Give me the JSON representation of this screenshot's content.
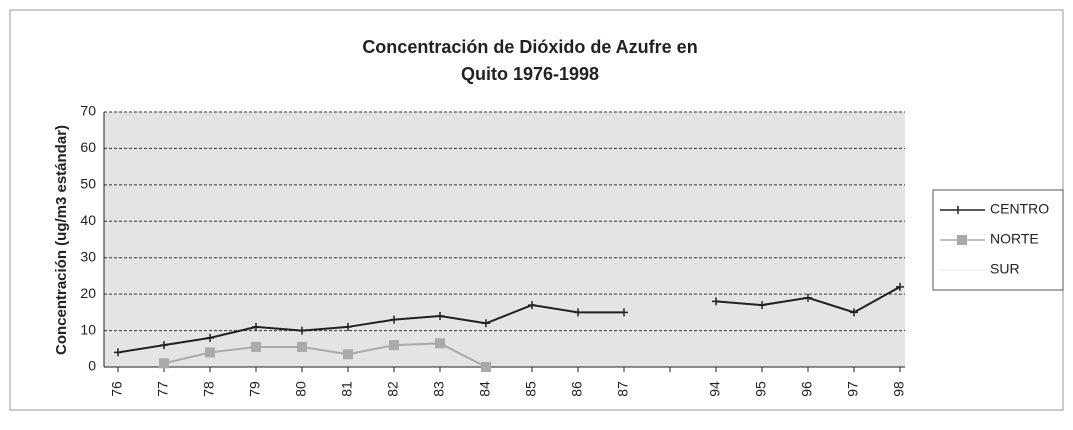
{
  "chart_data": {
    "type": "line",
    "title": [
      "Concentración de Dióxido de Azufre en",
      "Quito 1976-1998"
    ],
    "y_label": "Concentración (ug/m3 estándar)",
    "categories": [
      "76",
      "77",
      "78",
      "79",
      "80",
      "81",
      "82",
      "83",
      "84",
      "85",
      "86",
      "87",
      null,
      "94",
      "95",
      "96",
      "97",
      "98"
    ],
    "series": [
      {
        "name": "CENTRO",
        "color": "#222222",
        "marker": "plus",
        "values": [
          4,
          6,
          8,
          11,
          10,
          11,
          13,
          14,
          12,
          17,
          15,
          15,
          null,
          18,
          17,
          19,
          15,
          22
        ]
      },
      {
        "name": "NORTE",
        "color": "#aaaaaa",
        "marker": "square",
        "values": [
          null,
          1,
          4,
          5.5,
          5.5,
          3.5,
          6,
          6.5,
          0,
          null,
          null,
          null,
          null,
          null,
          null,
          null,
          null,
          null
        ]
      },
      {
        "name": "SUR",
        "color": "#eeeeee",
        "marker": "none",
        "values": [
          null,
          null,
          null,
          null,
          null,
          null,
          null,
          null,
          null,
          null,
          null,
          null,
          null,
          null,
          null,
          null,
          null,
          null
        ]
      }
    ],
    "ylim": [
      0,
      70
    ],
    "yticks": [
      0,
      10,
      20,
      30,
      40,
      50,
      60,
      70
    ],
    "grid": true,
    "legend": "right"
  }
}
